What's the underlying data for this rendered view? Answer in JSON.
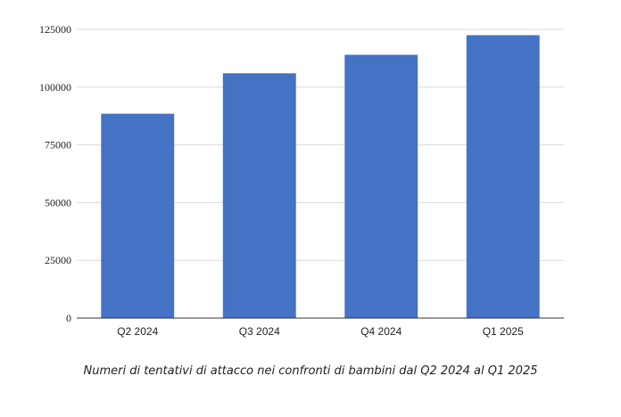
{
  "chart_data": {
    "type": "bar",
    "title": "",
    "xlabel": "",
    "ylabel": "",
    "categories": [
      "Q2 2024",
      "Q3 2024",
      "Q4 2024",
      "Q1 2025"
    ],
    "values": [
      88500,
      106000,
      114000,
      122500
    ],
    "ylim": [
      0,
      125000
    ],
    "yticks": [
      0,
      25000,
      50000,
      75000,
      100000,
      125000
    ],
    "grid": true,
    "legend": "none",
    "bar_color": "#4472C4",
    "grid_color": "#d9d9d9",
    "axis_color": "#333333"
  },
  "caption": "Numeri di tentativi di attacco nei confronti di bambini dal Q2 2024 al Q1 2025"
}
